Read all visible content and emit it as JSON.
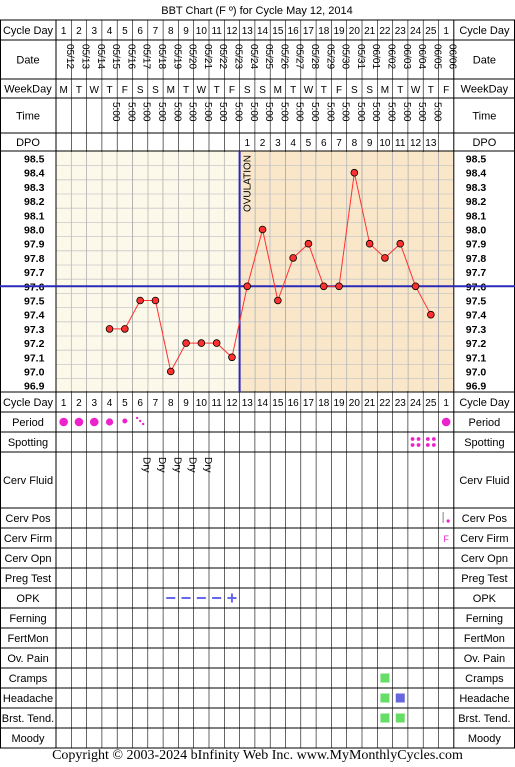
{
  "title": "BBT Chart (F º) for Cycle May 12, 2014",
  "row_labels": {
    "cycle_day": "Cycle Day",
    "date": "Date",
    "weekday": "WeekDay",
    "time": "Time",
    "dpo": "DPO",
    "period": "Period",
    "spotting": "Spotting",
    "cerv_fluid": "Cerv Fluid",
    "cerv_pos": "Cerv Pos",
    "cerv_firm": "Cerv Firm",
    "cerv_opn": "Cerv Opn",
    "preg_test": "Preg Test",
    "opk": "OPK",
    "ferning": "Ferning",
    "fertmon": "FertMon",
    "ov_pain": "Ov. Pain",
    "cramps": "Cramps",
    "headache": "Headache",
    "brst_tend": "Brst. Tend.",
    "moody": "Moody"
  },
  "cycle_days": [
    "1",
    "2",
    "3",
    "4",
    "5",
    "6",
    "7",
    "8",
    "9",
    "10",
    "11",
    "12",
    "13",
    "14",
    "15",
    "16",
    "17",
    "18",
    "19",
    "20",
    "21",
    "22",
    "23",
    "24",
    "25",
    "1"
  ],
  "dates": [
    "05/12",
    "05/13",
    "05/14",
    "05/15",
    "05/16",
    "05/17",
    "05/18",
    "05/19",
    "05/20",
    "05/21",
    "05/22",
    "05/23",
    "05/24",
    "05/25",
    "05/26",
    "05/27",
    "05/28",
    "05/29",
    "05/30",
    "05/31",
    "06/01",
    "06/02",
    "06/03",
    "06/04",
    "06/05",
    "06/06"
  ],
  "weekdays": [
    "M",
    "T",
    "W",
    "T",
    "F",
    "S",
    "S",
    "M",
    "T",
    "W",
    "T",
    "F",
    "S",
    "S",
    "M",
    "T",
    "W",
    "T",
    "F",
    "S",
    "S",
    "M",
    "T",
    "W",
    "T",
    "F"
  ],
  "times": [
    "",
    "",
    "",
    "5:00",
    "5:00",
    "5:00",
    "5:00",
    "5:00",
    "5:00",
    "5:00",
    "5:00",
    "5:00",
    "5:00",
    "5:00",
    "5:00",
    "5:00",
    "5:00",
    "5:00",
    "5:00",
    "5:00",
    "5:00",
    "5:00",
    "5:00",
    "5:00",
    "5:00",
    ""
  ],
  "dpo": [
    "",
    "",
    "",
    "",
    "",
    "",
    "",
    "",
    "",
    "",
    "",
    "",
    "1",
    "2",
    "3",
    "4",
    "5",
    "6",
    "7",
    "8",
    "9",
    "10",
    "11",
    "12",
    "13",
    ""
  ],
  "cerv_fluid": [
    "",
    "",
    "",
    "",
    "",
    "Dry",
    "Dry",
    "Dry",
    "Dry",
    "Dry",
    "",
    "",
    "",
    "",
    "",
    "",
    "",
    "",
    "",
    "",
    "",
    "",
    "",
    "",
    "",
    ""
  ],
  "cerv_firm": [
    "",
    "",
    "",
    "",
    "",
    "",
    "",
    "",
    "",
    "",
    "",
    "",
    "",
    "",
    "",
    "",
    "",
    "",
    "",
    "",
    "",
    "",
    "",
    "",
    "",
    "F"
  ],
  "ovulation_label": "OVULATION",
  "footer": "Copyright © 2003-2024 bInfinity Web Inc.    www.MyMonthlyCycles.com",
  "colors": {
    "pre_ovulation_bg": "#fdf9ea",
    "post_ovulation_bg": "#fae7c9",
    "temp_line": "#ff3030",
    "coverline": "#2a2ab8",
    "ovulation_line": "#2a2ab8",
    "period": "#ee22cc",
    "opk": "#6666ee",
    "cramps": "#66dd66",
    "headache_1": "#66dd66",
    "headache_2": "#6666dd",
    "brst_tend": "#66dd66"
  },
  "chart_data": {
    "type": "line",
    "title": "BBT Chart (F º) for Cycle May 12, 2014",
    "x": [
      "05/12",
      "05/13",
      "05/14",
      "05/15",
      "05/16",
      "05/17",
      "05/18",
      "05/19",
      "05/20",
      "05/21",
      "05/22",
      "05/23",
      "05/24",
      "05/25",
      "05/26",
      "05/27",
      "05/28",
      "05/29",
      "05/30",
      "05/31",
      "06/01",
      "06/02",
      "06/03",
      "06/04",
      "06/05",
      "06/06"
    ],
    "values": [
      null,
      null,
      null,
      97.3,
      97.3,
      97.5,
      97.5,
      97.0,
      97.2,
      97.2,
      97.2,
      97.1,
      97.6,
      98.0,
      97.5,
      97.8,
      97.9,
      97.6,
      97.6,
      98.4,
      97.9,
      97.8,
      97.9,
      97.6,
      97.4,
      null
    ],
    "y_ticks": [
      "98.5",
      "98.4",
      "98.3",
      "98.2",
      "98.1",
      "98.0",
      "97.9",
      "97.8",
      "97.7",
      "97.6",
      "97.5",
      "97.4",
      "97.3",
      "97.2",
      "97.1",
      "97.0",
      "96.9"
    ],
    "ylim": [
      96.9,
      98.5
    ],
    "coverline": 97.6,
    "ovulation_after_cycle_day": 12,
    "grid": true
  },
  "symptoms": {
    "period": [
      "heavy",
      "heavy",
      "heavy",
      "medium",
      "light",
      "spot",
      "",
      "",
      "",
      "",
      "",
      "",
      "",
      "",
      "",
      "",
      "",
      "",
      "",
      "",
      "",
      "",
      "",
      "",
      "",
      "heavy"
    ],
    "spotting": [
      "",
      "",
      "",
      "",
      "",
      "",
      "",
      "",
      "",
      "",
      "",
      "",
      "",
      "",
      "",
      "",
      "",
      "",
      "",
      "",
      "",
      "",
      "",
      "x",
      "x",
      ""
    ],
    "cerv_pos": [
      "",
      "",
      "",
      "",
      "",
      "",
      "",
      "",
      "",
      "",
      "",
      "",
      "",
      "",
      "",
      "",
      "",
      "",
      "",
      "",
      "",
      "",
      "",
      "",
      "",
      "low"
    ],
    "opk": [
      "",
      "",
      "",
      "",
      "",
      "",
      "",
      "neg",
      "neg",
      "neg",
      "neg",
      "pos",
      "",
      "",
      "",
      "",
      "",
      "",
      "",
      "",
      "",
      "",
      "",
      "",
      "",
      ""
    ],
    "cramps": [
      "",
      "",
      "",
      "",
      "",
      "",
      "",
      "",
      "",
      "",
      "",
      "",
      "",
      "",
      "",
      "",
      "",
      "",
      "",
      "",
      "",
      "x",
      "",
      "",
      "",
      ""
    ],
    "headache": [
      "",
      "",
      "",
      "",
      "",
      "",
      "",
      "",
      "",
      "",
      "",
      "",
      "",
      "",
      "",
      "",
      "",
      "",
      "",
      "",
      "",
      "x",
      "y",
      "",
      "",
      ""
    ],
    "brst_tend": [
      "",
      "",
      "",
      "",
      "",
      "",
      "",
      "",
      "",
      "",
      "",
      "",
      "",
      "",
      "",
      "",
      "",
      "",
      "",
      "",
      "",
      "x",
      "x",
      "",
      "",
      ""
    ]
  }
}
